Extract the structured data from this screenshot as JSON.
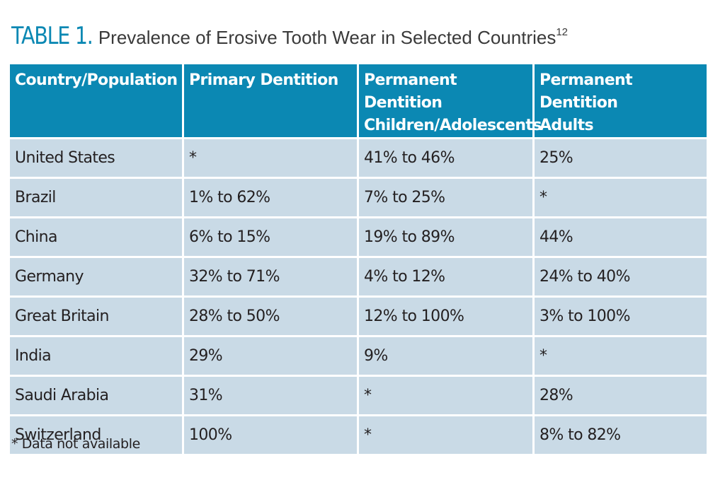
{
  "title": {
    "label": "TABLE 1.",
    "text": "Prevalence of Erosive Tooth Wear in Selected Countries",
    "superscript": "12"
  },
  "table": {
    "headers": [
      [
        "Country/Population"
      ],
      [
        "Primary Dentition"
      ],
      [
        "Permanent Dentition",
        "Children/Adolescents"
      ],
      [
        "Permanent Dentition",
        "Adults"
      ]
    ],
    "rows": [
      [
        "United States",
        "*",
        "41% to 46%",
        "25%"
      ],
      [
        "Brazil",
        "1% to 62%",
        "7% to 25%",
        "*"
      ],
      [
        "China",
        "6% to 15%",
        "19% to 89%",
        "44%"
      ],
      [
        "Germany",
        "32% to 71%",
        "4% to 12%",
        "24% to 40%"
      ],
      [
        "Great Britain",
        "28% to 50%",
        "12% to 100%",
        "3% to 100%"
      ],
      [
        "India",
        "29%",
        "9%",
        "*"
      ],
      [
        "Saudi Arabia",
        "31%",
        "*",
        "28%"
      ],
      [
        "Switzerland",
        "100%",
        "*",
        "8% to 82%"
      ]
    ]
  },
  "footnote": "* Data not available",
  "colors": {
    "header_bg": "#0b88b3",
    "cell_bg": "#c9dae6",
    "title_accent": "#0b88b3"
  }
}
